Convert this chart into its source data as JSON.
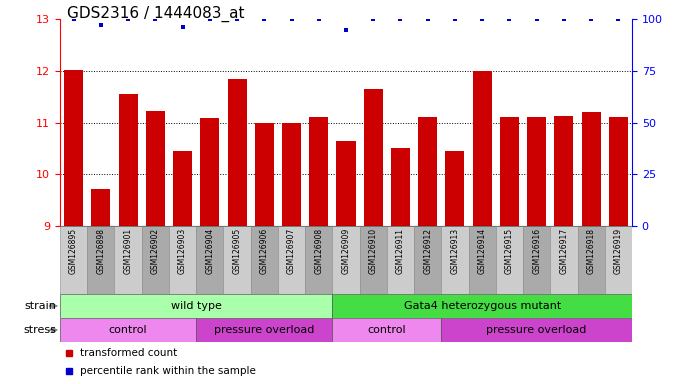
{
  "title": "GDS2316 / 1444083_at",
  "samples": [
    "GSM126895",
    "GSM126898",
    "GSM126901",
    "GSM126902",
    "GSM126903",
    "GSM126904",
    "GSM126905",
    "GSM126906",
    "GSM126907",
    "GSM126908",
    "GSM126909",
    "GSM126910",
    "GSM126911",
    "GSM126912",
    "GSM126913",
    "GSM126914",
    "GSM126915",
    "GSM126916",
    "GSM126917",
    "GSM126918",
    "GSM126919"
  ],
  "bar_values": [
    12.02,
    9.72,
    11.55,
    11.22,
    10.45,
    11.08,
    11.85,
    11.0,
    11.0,
    11.1,
    10.65,
    11.65,
    10.5,
    11.1,
    10.45,
    12.0,
    11.1,
    11.1,
    11.12,
    11.2,
    11.1
  ],
  "percentile_values": [
    100,
    97,
    100,
    100,
    96,
    100,
    100,
    100,
    100,
    100,
    95,
    100,
    100,
    100,
    100,
    100,
    100,
    100,
    100,
    100,
    100
  ],
  "bar_color": "#cc0000",
  "percentile_color": "#0000cc",
  "ylim_left": [
    9,
    13
  ],
  "ylim_right": [
    0,
    100
  ],
  "yticks_left": [
    9,
    10,
    11,
    12,
    13
  ],
  "yticks_right": [
    0,
    25,
    50,
    75,
    100
  ],
  "grid_lines": [
    10,
    11,
    12
  ],
  "background_color": "#ffffff",
  "strain_segments": [
    {
      "start": 0,
      "end": 10,
      "text": "wild type",
      "color": "#aaffaa"
    },
    {
      "start": 10,
      "end": 21,
      "text": "Gata4 heterozygous mutant",
      "color": "#44dd44"
    }
  ],
  "stress_segments": [
    {
      "start": 0,
      "end": 5,
      "text": "control",
      "color": "#ee88ee"
    },
    {
      "start": 5,
      "end": 10,
      "text": "pressure overload",
      "color": "#cc44cc"
    },
    {
      "start": 10,
      "end": 14,
      "text": "control",
      "color": "#ee88ee"
    },
    {
      "start": 14,
      "end": 21,
      "text": "pressure overload",
      "color": "#cc44cc"
    }
  ],
  "legend": [
    {
      "color": "#cc0000",
      "label": "transformed count"
    },
    {
      "color": "#0000cc",
      "label": "percentile rank within the sample"
    }
  ],
  "title_fontsize": 11,
  "bar_width": 0.7,
  "sample_label_fontsize": 5.5,
  "row_label_fontsize": 8,
  "row_text_fontsize": 8,
  "legend_fontsize": 7.5,
  "sample_bg_even": "#cccccc",
  "sample_bg_odd": "#aaaaaa"
}
